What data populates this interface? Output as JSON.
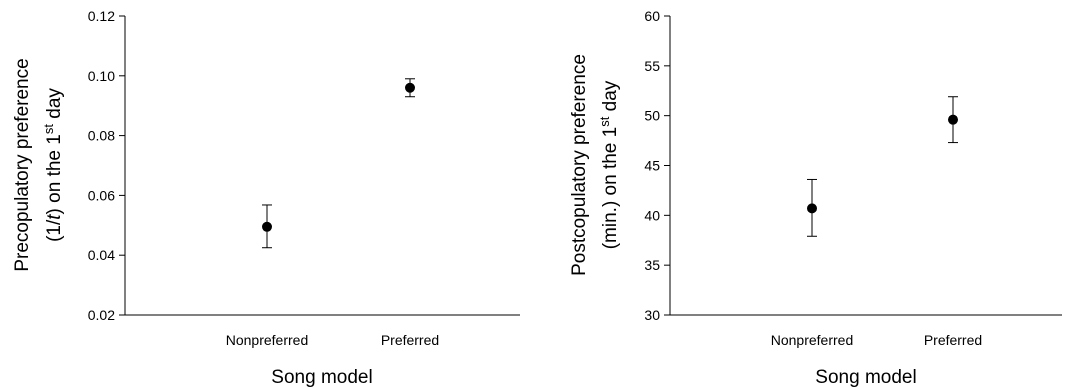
{
  "chart_data": [
    {
      "type": "scatter",
      "categories": [
        "Nonpreferred",
        "Preferred"
      ],
      "values": [
        0.0495,
        0.096
      ],
      "error_low": [
        0.0425,
        0.093
      ],
      "error_high": [
        0.0568,
        0.099
      ],
      "xlabel": "Song model",
      "ylabel": {
        "line1": "Precopulatory preference",
        "line2_pre": "(1/",
        "line2_italic": "t",
        "line2_post": ") on the 1",
        "line2_sup": "st",
        "line2_end": " day"
      },
      "ylim": [
        0.02,
        0.12
      ],
      "yticks": [
        "0.02",
        "0.04",
        "0.06",
        "0.08",
        "0.10",
        "0.12"
      ],
      "grid": false,
      "marker_color": "#000000"
    },
    {
      "type": "scatter",
      "categories": [
        "Nonpreferred",
        "Preferred"
      ],
      "values": [
        40.7,
        49.6
      ],
      "error_low": [
        37.9,
        47.3
      ],
      "error_high": [
        43.6,
        51.9
      ],
      "xlabel": "Song model",
      "ylabel": {
        "line1": "Postcopulatory preference",
        "line2_pre": "(min.) on the 1",
        "line2_italic": "",
        "line2_post": "",
        "line2_sup": "st",
        "line2_end": " day"
      },
      "ylim": [
        30,
        60
      ],
      "yticks": [
        "30",
        "35",
        "40",
        "45",
        "50",
        "55",
        "60"
      ],
      "grid": false,
      "marker_color": "#000000"
    }
  ]
}
